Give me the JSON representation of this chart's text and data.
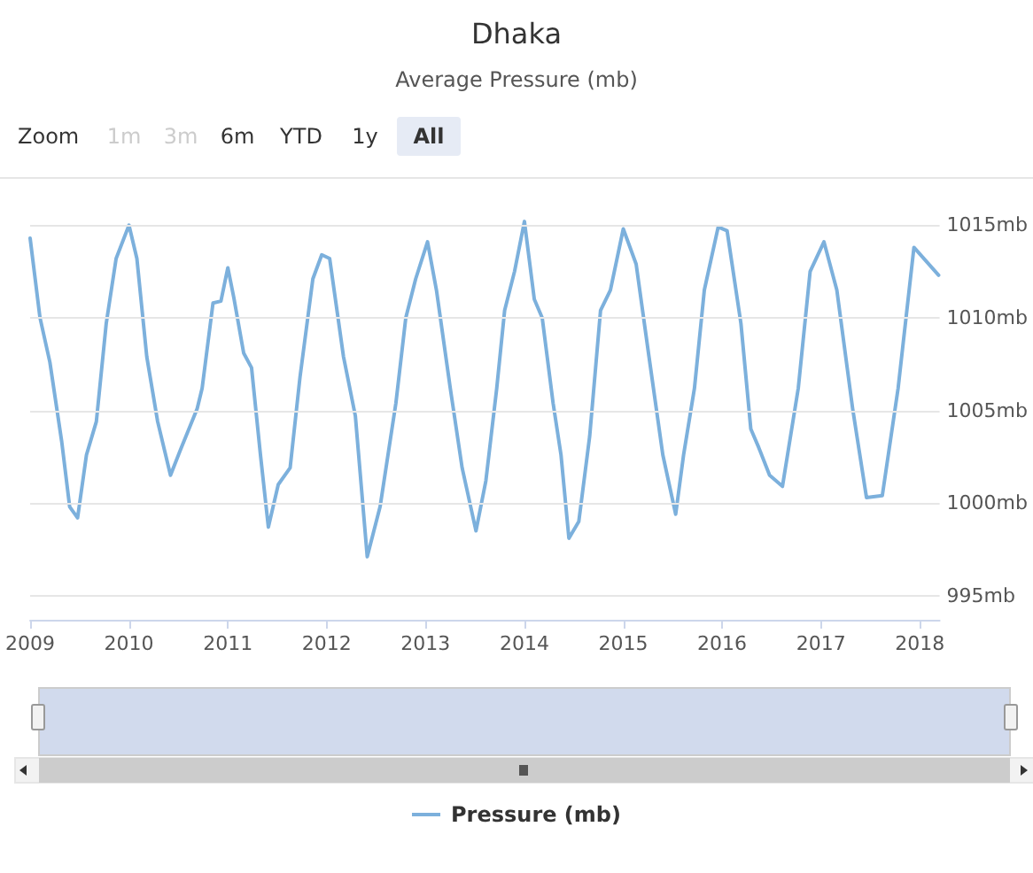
{
  "chart_data": {
    "type": "line",
    "title": "Dhaka",
    "subtitle": "Average Pressure (mb)",
    "annotations": [
      "Zoom",
      "1m",
      "3m",
      "6m",
      "YTD",
      "1y",
      "All"
    ],
    "series": [
      {
        "name": "Pressure (mb)",
        "color": "#7cb0dc",
        "x": [
          2009.0,
          2009.1,
          2009.2,
          2009.32,
          2009.4,
          2009.48,
          2009.57,
          2009.67,
          2009.77,
          2009.87,
          2010.0,
          2010.08,
          2010.18,
          2010.29,
          2010.42,
          2010.53,
          2010.69,
          2010.74,
          2010.85,
          2010.93,
          2011.0,
          2011.06,
          2011.16,
          2011.24,
          2011.33,
          2011.41,
          2011.51,
          2011.63,
          2011.73,
          2011.86,
          2011.95,
          2012.03,
          2012.17,
          2012.29,
          2012.41,
          2012.54,
          2012.7,
          2012.8,
          2012.9,
          2013.02,
          2013.11,
          2013.25,
          2013.37,
          2013.51,
          2013.61,
          2013.72,
          2013.8,
          2013.9,
          2014.0,
          2014.1,
          2014.18,
          2014.29,
          2014.37,
          2014.45,
          2014.55,
          2014.66,
          2014.77,
          2014.87,
          2015.0,
          2015.13,
          2015.26,
          2015.4,
          2015.53,
          2015.61,
          2015.72,
          2015.82,
          2015.96,
          2016.05,
          2016.19,
          2016.29,
          2016.37,
          2016.48,
          2016.61,
          2016.77,
          2016.89,
          2017.03,
          2017.16,
          2017.32,
          2017.46,
          2017.62,
          2017.78,
          2017.94,
          2018.19
        ],
        "values": [
          1014.3,
          1010.0,
          1007.6,
          1003.3,
          999.8,
          999.2,
          1002.6,
          1004.4,
          1009.7,
          1013.2,
          1015.0,
          1013.2,
          1007.9,
          1004.4,
          1001.5,
          1003.0,
          1005.1,
          1006.2,
          1010.8,
          1010.9,
          1012.7,
          1011.1,
          1008.1,
          1007.3,
          1002.6,
          998.7,
          1001.0,
          1001.9,
          1006.8,
          1012.1,
          1013.4,
          1013.2,
          1007.9,
          1004.7,
          997.1,
          999.8,
          1005.4,
          1010.0,
          1012.1,
          1014.1,
          1011.5,
          1006.2,
          1001.9,
          998.5,
          1001.2,
          1006.2,
          1010.4,
          1012.5,
          1015.2,
          1011.0,
          1010.0,
          1005.4,
          1002.6,
          998.1,
          999.0,
          1003.6,
          1010.4,
          1011.5,
          1014.8,
          1012.9,
          1007.9,
          1002.6,
          999.4,
          1002.6,
          1006.2,
          1011.5,
          1014.9,
          1014.7,
          1009.7,
          1004.0,
          1003.0,
          1001.5,
          1000.9,
          1006.2,
          1012.5,
          1014.1,
          1011.5,
          1005.1,
          1000.3,
          1000.4,
          1006.2,
          1013.8,
          1012.3
        ]
      }
    ],
    "xlim": [
      2009,
      2018.2
    ],
    "xticks": [
      2009,
      2010,
      2011,
      2012,
      2013,
      2014,
      2015,
      2016,
      2017,
      2018
    ],
    "ylim": [
      993.7,
      1017.5
    ],
    "yticks": [
      {
        "value": 995,
        "label": "995mb"
      },
      {
        "value": 1000,
        "label": "1000mb"
      },
      {
        "value": 1005,
        "label": "1005mb"
      },
      {
        "value": 1010,
        "label": "1010mb"
      },
      {
        "value": 1015,
        "label": "1015mb"
      }
    ],
    "grid": "y",
    "legend": "bottom",
    "marker": "none",
    "line_style": "solid"
  }
}
